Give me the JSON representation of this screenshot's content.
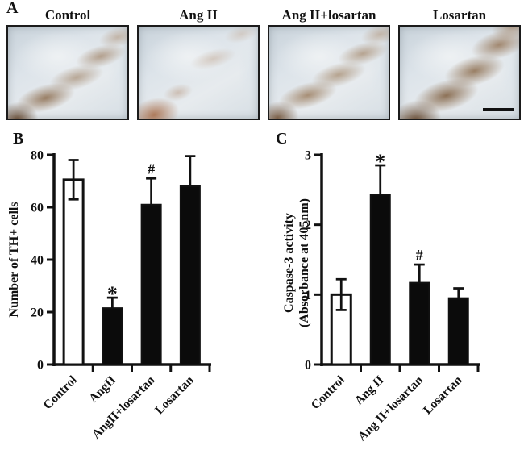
{
  "panel_a": {
    "label": "A",
    "images": [
      {
        "title": "Control",
        "variant": "control",
        "scale_bar": false
      },
      {
        "title": "Ang II",
        "variant": "angii",
        "scale_bar": false
      },
      {
        "title": "Ang II+losartan",
        "variant": "angii-losartan",
        "scale_bar": false
      },
      {
        "title": "Losartan",
        "variant": "losartan",
        "scale_bar": true
      }
    ]
  },
  "chart_data": [
    {
      "panel_label": "B",
      "type": "bar",
      "ylabel_lines": [
        "Number of TH+ cells"
      ],
      "categories": [
        "Control",
        "AngII",
        "AngII+losartan",
        "Losartan"
      ],
      "values": [
        70.5,
        21.5,
        61,
        68
      ],
      "errors_up": [
        7.5,
        4,
        10,
        11.5
      ],
      "errors_down": [
        7.5,
        0,
        0,
        0
      ],
      "bar_fills": [
        "#ffffff",
        "#0b0b0b",
        "#0b0b0b",
        "#0b0b0b"
      ],
      "annotations": [
        "",
        "*",
        "#",
        ""
      ],
      "ylim": [
        0,
        80
      ],
      "yticks": [
        0,
        20,
        40,
        60,
        80
      ],
      "grid": false,
      "legend": null
    },
    {
      "panel_label": "C",
      "type": "bar",
      "ylabel_lines": [
        "Caspase-3 activity",
        "(Absorbance  at 405nm)"
      ],
      "categories": [
        "Control",
        "Ang II",
        "Ang II+losartan",
        "Losartan"
      ],
      "values": [
        1.0,
        2.43,
        1.17,
        0.95
      ],
      "errors_up": [
        0.22,
        0.42,
        0.26,
        0.14
      ],
      "errors_down": [
        0.22,
        0,
        0,
        0
      ],
      "bar_fills": [
        "#ffffff",
        "#0b0b0b",
        "#0b0b0b",
        "#0b0b0b"
      ],
      "annotations": [
        "",
        "*",
        "#",
        ""
      ],
      "ylim": [
        0,
        3
      ],
      "yticks": [
        0,
        1,
        2,
        3
      ],
      "grid": false,
      "legend": null
    }
  ],
  "colors": {
    "ink": "#111111",
    "bar_black": "#0b0b0b",
    "bar_white": "#ffffff",
    "tissue_background": "#dde4ea",
    "stain_brown": "#8a6646"
  }
}
